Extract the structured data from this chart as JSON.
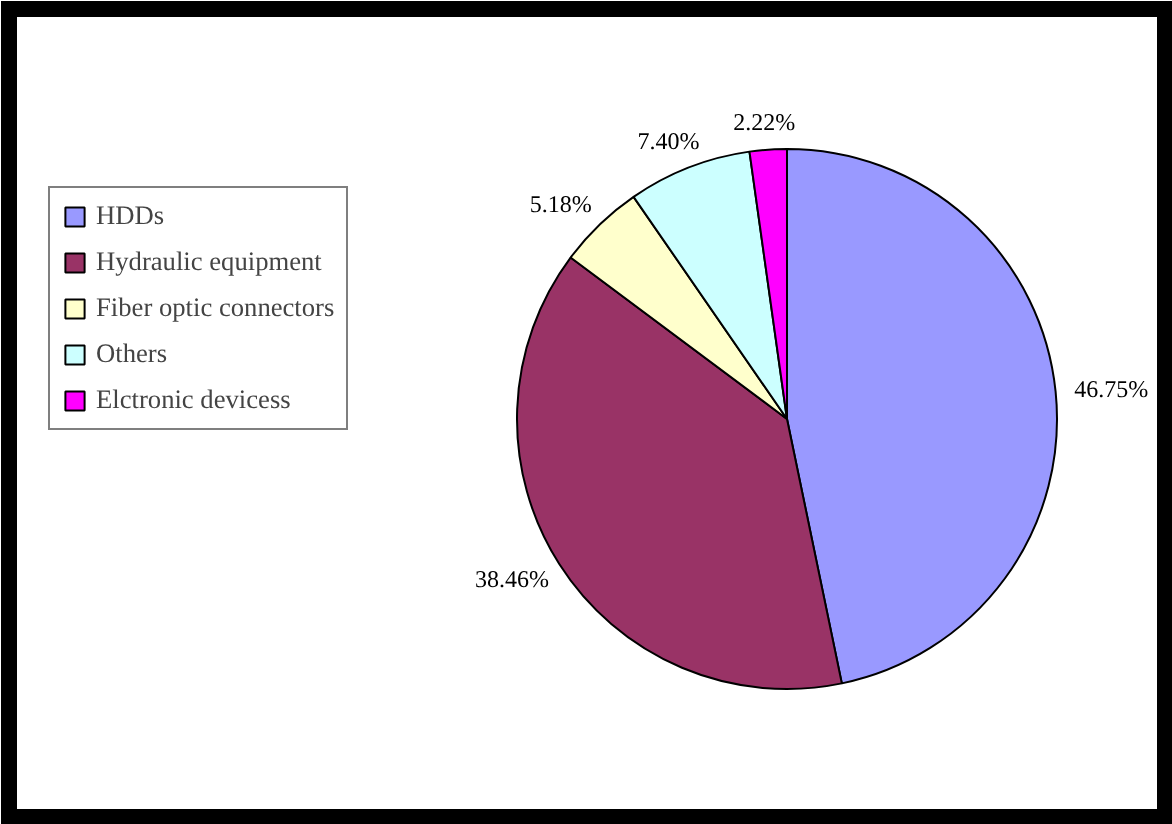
{
  "chart_data": {
    "type": "pie",
    "categories": [
      "HDDs",
      "Hydraulic equipment",
      "Fiber optic connectors",
      "Others",
      "Elctronic devicess"
    ],
    "values": [
      46.75,
      38.46,
      5.18,
      7.4,
      2.22
    ],
    "colors": [
      "#9999ff",
      "#993366",
      "#ffffcc",
      "#ccffff",
      "#ff00ff"
    ],
    "value_labels": [
      "46.75%",
      "38.46%",
      "5.18%",
      "7.40%",
      "2.22%"
    ],
    "legend": "left"
  }
}
